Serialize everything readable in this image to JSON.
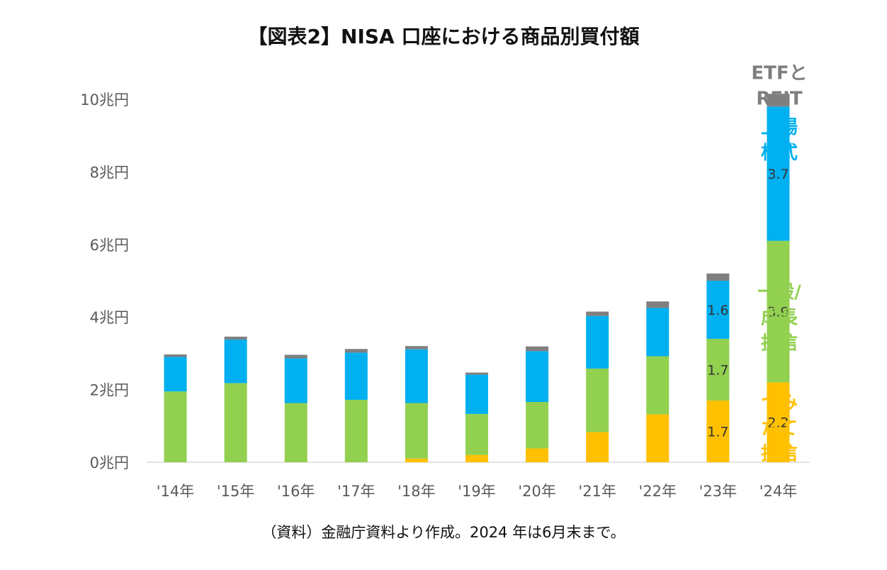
{
  "chart_data": {
    "type": "bar",
    "stacked": true,
    "title": "【図表2】NISA 口座における商品別買付額",
    "xlabel": "",
    "ylabel": "",
    "categories": [
      "'14年",
      "'15年",
      "'16年",
      "'17年",
      "'18年",
      "'19年",
      "'20年",
      "'21年",
      "'22年",
      "'23年",
      "'24年"
    ],
    "ylim": [
      0,
      10
    ],
    "yticks": [
      {
        "value": 0,
        "label": "0兆円"
      },
      {
        "value": 2,
        "label": "2兆円"
      },
      {
        "value": 4,
        "label": "4兆円"
      },
      {
        "value": 6,
        "label": "6兆円"
      },
      {
        "value": 8,
        "label": "8兆円"
      },
      {
        "value": 10,
        "label": "10兆円"
      }
    ],
    "series": [
      {
        "name": "つみたて投信",
        "legend": [
          "つみ",
          "たて",
          "投信"
        ],
        "color": "#FFC000",
        "values": [
          0,
          0,
          0,
          0,
          0.1,
          0.2,
          0.38,
          0.83,
          1.32,
          1.7,
          2.2
        ],
        "labels": [
          "",
          "",
          "",
          "",
          "",
          "",
          "",
          "",
          "",
          "1.7",
          "2.2"
        ]
      },
      {
        "name": "一般/成長投信",
        "legend": [
          "一般/",
          "成長",
          "投信"
        ],
        "color": "#92D050",
        "values": [
          1.95,
          2.18,
          1.63,
          1.72,
          1.53,
          1.13,
          1.28,
          1.75,
          1.6,
          1.7,
          3.9
        ],
        "labels": [
          "",
          "",
          "",
          "",
          "",
          "",
          "",
          "",
          "",
          "1.7",
          "3.9"
        ]
      },
      {
        "name": "上場株式",
        "legend": [
          "上場",
          "株式"
        ],
        "color": "#00B0F0",
        "values": [
          0.95,
          1.2,
          1.23,
          1.3,
          1.48,
          1.08,
          1.4,
          1.45,
          1.33,
          1.6,
          3.7
        ],
        "labels": [
          "",
          "",
          "",
          "",
          "",
          "",
          "",
          "",
          "",
          "1.6",
          "3.7"
        ]
      },
      {
        "name": "ETFとREIT",
        "legend": [
          "ETFと",
          "REIT"
        ],
        "color": "#7F7F7F",
        "values": [
          0.07,
          0.08,
          0.1,
          0.1,
          0.09,
          0.06,
          0.13,
          0.12,
          0.18,
          0.2,
          0.35
        ],
        "labels": [
          "",
          "",
          "",
          "",
          "",
          "",
          "",
          "",
          "",
          "",
          ""
        ]
      }
    ]
  },
  "source_note": "（資料）金融庁資料より作成。2024 年は6月末まで。"
}
